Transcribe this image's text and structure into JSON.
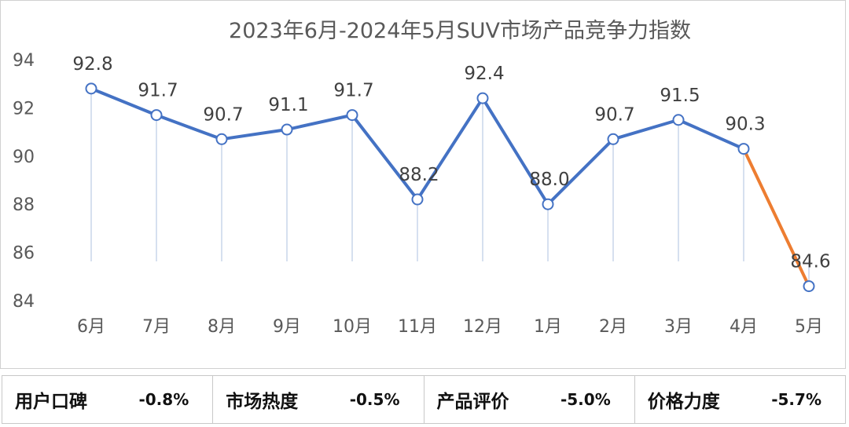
{
  "chart_data": {
    "type": "line",
    "title": "2023年6月-2024年5月SUV市场产品竞争力指数",
    "categories": [
      "6月",
      "7月",
      "8月",
      "9月",
      "10月",
      "11月",
      "12月",
      "1月",
      "2月",
      "3月",
      "4月",
      "5月"
    ],
    "series": [
      {
        "values": [
          92.8,
          91.7,
          90.7,
          91.1,
          91.7,
          88.2,
          92.4,
          88.0,
          90.7,
          91.5,
          90.3,
          84.6
        ]
      }
    ],
    "data_labels": [
      "92.8",
      "91.7",
      "90.7",
      "91.1",
      "91.7",
      "88.2",
      "92.4",
      "88.0",
      "90.7",
      "91.5",
      "90.3",
      "84.6"
    ],
    "ylim": [
      84,
      94
    ],
    "yticks": [
      84,
      86,
      88,
      90,
      92,
      94
    ],
    "grid": false,
    "line_color": "#4472C4",
    "highlight_color": "#ED7D31",
    "drop_line_color": "#c9d6ea"
  },
  "metrics": [
    {
      "label": "用户口碑",
      "value": "-0.8%"
    },
    {
      "label": "市场热度",
      "value": "-0.5%"
    },
    {
      "label": "产品评价",
      "value": "-5.0%"
    },
    {
      "label": "价格力度",
      "value": "-5.7%"
    }
  ]
}
